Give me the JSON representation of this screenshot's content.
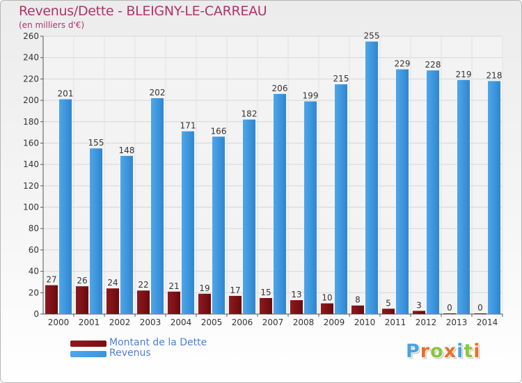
{
  "title": "Revenus/Dette - BLEIGNY-LE-CARREAU",
  "subtitle": "(en milliers d'€)",
  "colors": {
    "debt": "#7a0f14",
    "revenue": "#3d94dc",
    "title": "#b0336a",
    "legend_text": "#4d7fd8"
  },
  "legend": {
    "debt_label": "Montant de la Dette",
    "revenue_label": "Revenus"
  },
  "logo": {
    "text": "Proxiti",
    "letter_colors": [
      "#4aa3df",
      "#e8702a",
      "#8bc53f",
      "#e8702a",
      "#4aa3df",
      "#8bc53f",
      "#e8702a"
    ]
  },
  "chart_data": {
    "type": "bar",
    "categories": [
      "2000",
      "2001",
      "2002",
      "2003",
      "2004",
      "2005",
      "2006",
      "2007",
      "2008",
      "2009",
      "2010",
      "2011",
      "2012",
      "2013",
      "2014"
    ],
    "series": [
      {
        "name": "Montant de la Dette",
        "values": [
          27,
          26,
          24,
          22,
          21,
          19,
          17,
          15,
          13,
          10,
          8,
          5,
          3,
          0,
          0
        ]
      },
      {
        "name": "Revenus",
        "values": [
          201,
          155,
          148,
          202,
          171,
          166,
          182,
          206,
          199,
          215,
          255,
          229,
          228,
          219,
          218
        ]
      }
    ],
    "title": "Revenus/Dette - BLEIGNY-LE-CARREAU",
    "subtitle": "(en milliers d'€)",
    "xlabel": "",
    "ylabel": "",
    "ylim": [
      0,
      260
    ],
    "yticks": [
      0,
      20,
      40,
      60,
      80,
      100,
      120,
      140,
      160,
      180,
      200,
      220,
      240,
      260
    ],
    "grid": true,
    "legend_position": "bottom-left"
  }
}
